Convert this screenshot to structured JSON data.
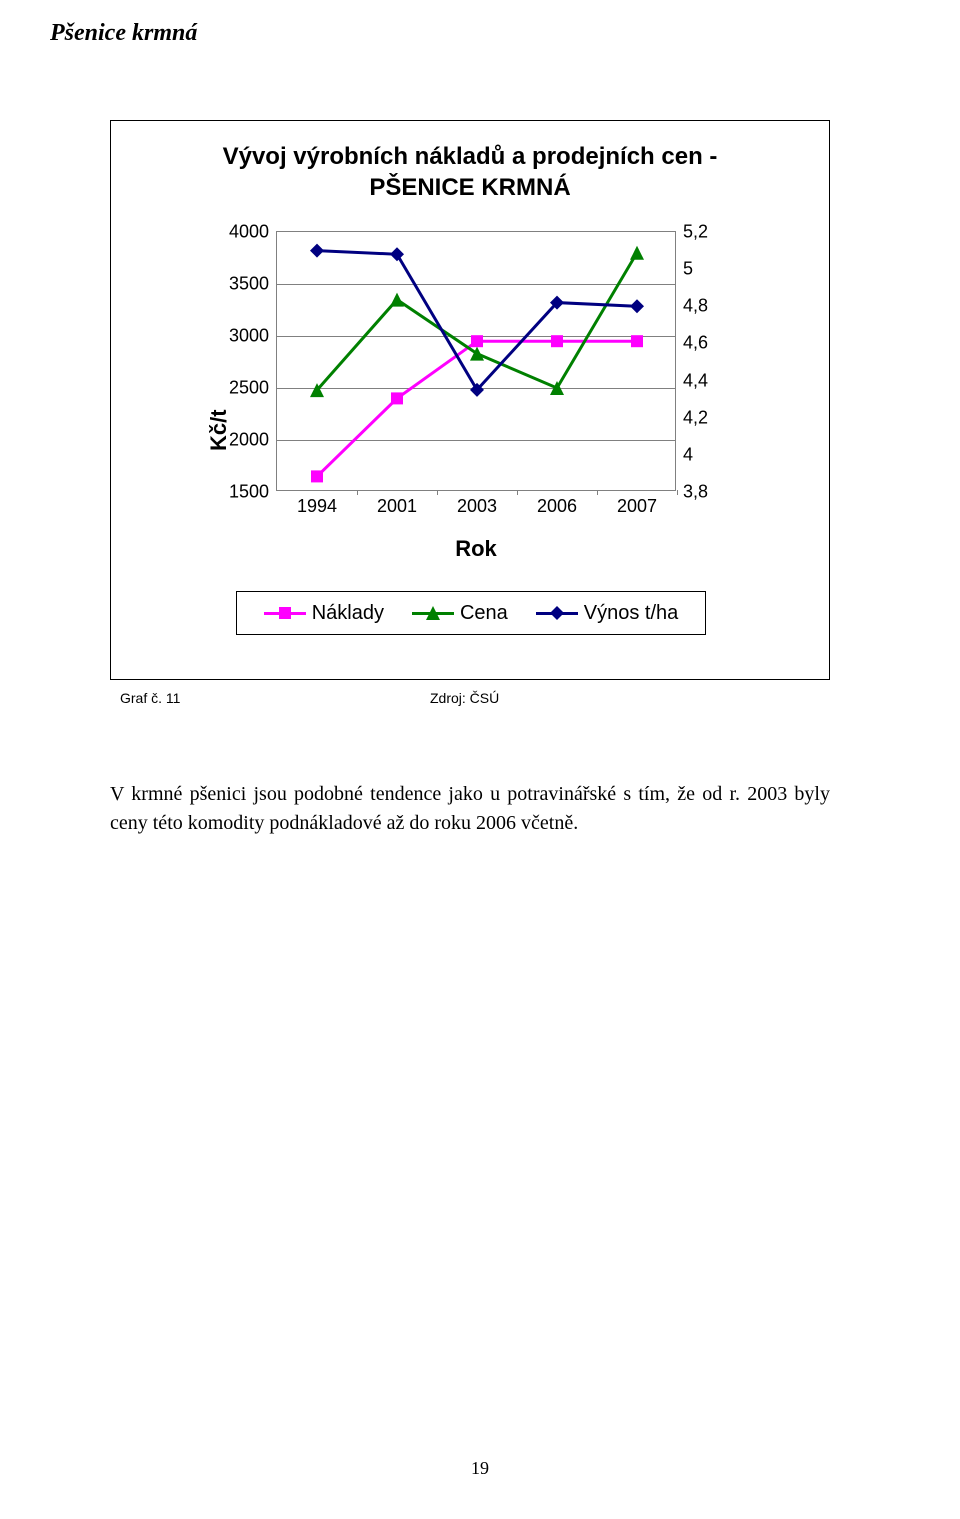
{
  "pageTitle": "Pšenice krmná",
  "chart": {
    "type": "line",
    "title_line1": "Vývoj výrobních nákladů a prodejních cen -",
    "title_line2": "PŠENICE KRMNÁ",
    "title_fontsize": 24,
    "xlabel": "Rok",
    "ylabel_left": "Kč/t",
    "label_fontsize": 22,
    "background_color": "#ffffff",
    "border_color": "#000000",
    "grid_color": "#808080",
    "categories": [
      "1994",
      "2001",
      "2003",
      "2006",
      "2007"
    ],
    "left_axis": {
      "min": 1500,
      "max": 4000,
      "step": 500,
      "ticks": [
        "1500",
        "2000",
        "2500",
        "3000",
        "3500",
        "4000"
      ]
    },
    "right_axis": {
      "min": 3.8,
      "max": 5.2,
      "step": 0.2,
      "ticks": [
        "3,8",
        "4",
        "4,2",
        "4,4",
        "4,6",
        "4,8",
        "5",
        "5,2"
      ]
    },
    "series": {
      "naklady": {
        "label": "Náklady",
        "color": "#ff00ff",
        "marker": "square",
        "marker_size": 12,
        "line_width": 3,
        "axis": "left",
        "values": [
          1650,
          2400,
          2950,
          2950,
          2950
        ]
      },
      "cena": {
        "label": "Cena",
        "color": "#008000",
        "marker": "triangle",
        "marker_size": 14,
        "line_width": 3,
        "axis": "left",
        "values": [
          2480,
          3350,
          2830,
          2500,
          3800
        ]
      },
      "vynos": {
        "label": "Výnos t/ha",
        "color": "#000080",
        "marker": "diamond",
        "marker_size": 14,
        "line_width": 3,
        "axis": "right",
        "values": [
          5.1,
          5.08,
          4.35,
          4.82,
          4.8
        ]
      }
    },
    "legend_border_color": "#000000"
  },
  "captionLeft": "Graf č. 11",
  "captionRight": "Zdroj: ČSÚ",
  "bodyText": "V krmné pšenici jsou podobné tendence jako u potravinářské s tím, že od r. 2003 byly ceny této komodity podnákladové až do roku 2006 včetně.",
  "pageNumber": "19"
}
